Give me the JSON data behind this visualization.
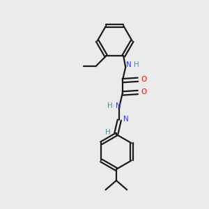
{
  "bg_color": "#ebebeb",
  "bond_color": "#1a1a1a",
  "N_color": "#3333ff",
  "O_color": "#ff0000",
  "H_color": "#4a9090",
  "line_width": 1.6,
  "figsize": [
    3.0,
    3.0
  ],
  "dpi": 100,
  "xlim": [
    0,
    10
  ],
  "ylim": [
    0,
    10
  ]
}
